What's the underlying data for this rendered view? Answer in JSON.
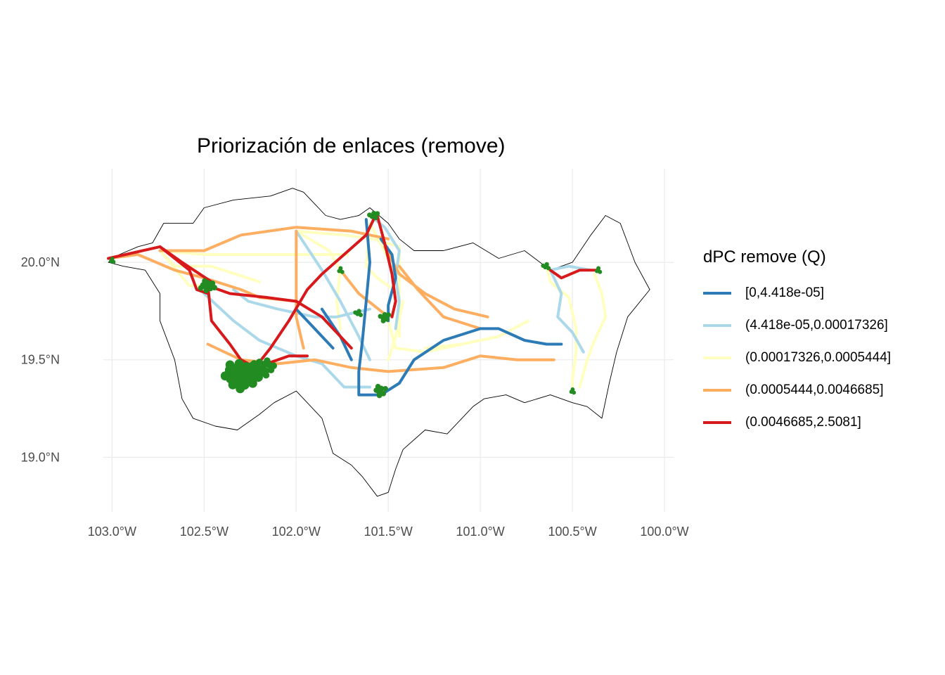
{
  "title": "Priorización de enlaces (remove)",
  "axes": {
    "x_ticks": [
      "103.0°W",
      "102.5°W",
      "102.0°W",
      "101.5°W",
      "101.0°W",
      "100.5°W",
      "100.0°W"
    ],
    "y_ticks": [
      "20.0°N",
      "19.5°N",
      "19.0°N"
    ],
    "x_tick_values": [
      -103.0,
      -102.5,
      -102.0,
      -101.5,
      -101.0,
      -100.5,
      -100.0
    ],
    "y_tick_values": [
      20.0,
      19.5,
      19.0
    ],
    "xlim": [
      -103.2,
      -99.92
    ],
    "ylim": [
      18.72,
      20.48
    ],
    "grid": true
  },
  "legend": {
    "title": "dPC remove (Q)",
    "placement": "right",
    "items": [
      {
        "label": "[0,4.418e-05]",
        "color": "#2c7bb6"
      },
      {
        "label": "(4.418e-05,0.00017326]",
        "color": "#abd9e9"
      },
      {
        "label": "(0.00017326,0.0005444]",
        "color": "#ffffbf"
      },
      {
        "label": "(0.0005444,0.0046685]",
        "color": "#fdae61"
      },
      {
        "label": "(0.0046685,2.5081]",
        "color": "#d7191c"
      }
    ]
  },
  "map_data": {
    "habitat_patch_color": "#228b22",
    "boundary_color": "#000000",
    "boundary": [
      [
        -103.02,
        20.0
      ],
      [
        -102.96,
        20.04
      ],
      [
        -102.86,
        20.08
      ],
      [
        -102.78,
        20.1
      ],
      [
        -102.72,
        20.2
      ],
      [
        -102.56,
        20.2
      ],
      [
        -102.5,
        20.28
      ],
      [
        -102.34,
        20.32
      ],
      [
        -102.14,
        20.34
      ],
      [
        -102.02,
        20.38
      ],
      [
        -101.96,
        20.36
      ],
      [
        -101.9,
        20.3
      ],
      [
        -101.84,
        20.24
      ],
      [
        -101.76,
        20.22
      ],
      [
        -101.66,
        20.24
      ],
      [
        -101.6,
        20.28
      ],
      [
        -101.5,
        20.2
      ],
      [
        -101.44,
        20.12
      ],
      [
        -101.36,
        20.06
      ],
      [
        -101.2,
        20.06
      ],
      [
        -101.04,
        20.1
      ],
      [
        -100.9,
        20.02
      ],
      [
        -100.76,
        20.06
      ],
      [
        -100.62,
        19.96
      ],
      [
        -100.5,
        20.0
      ],
      [
        -100.4,
        20.14
      ],
      [
        -100.32,
        20.24
      ],
      [
        -100.24,
        20.2
      ],
      [
        -100.16,
        20.0
      ],
      [
        -100.08,
        19.86
      ],
      [
        -100.2,
        19.72
      ],
      [
        -100.26,
        19.54
      ],
      [
        -100.3,
        19.38
      ],
      [
        -100.34,
        19.2
      ],
      [
        -100.42,
        19.26
      ],
      [
        -100.5,
        19.28
      ],
      [
        -100.62,
        19.32
      ],
      [
        -100.76,
        19.28
      ],
      [
        -100.86,
        19.32
      ],
      [
        -100.98,
        19.3
      ],
      [
        -101.04,
        19.26
      ],
      [
        -101.18,
        19.12
      ],
      [
        -101.3,
        19.14
      ],
      [
        -101.42,
        19.04
      ],
      [
        -101.46,
        18.94
      ],
      [
        -101.5,
        18.82
      ],
      [
        -101.56,
        18.8
      ],
      [
        -101.64,
        18.9
      ],
      [
        -101.7,
        18.96
      ],
      [
        -101.8,
        19.02
      ],
      [
        -101.86,
        19.2
      ],
      [
        -102.0,
        19.34
      ],
      [
        -102.12,
        19.28
      ],
      [
        -102.2,
        19.22
      ],
      [
        -102.32,
        19.14
      ],
      [
        -102.44,
        19.16
      ],
      [
        -102.56,
        19.2
      ],
      [
        -102.62,
        19.3
      ],
      [
        -102.66,
        19.5
      ],
      [
        -102.74,
        19.7
      ],
      [
        -102.74,
        19.84
      ],
      [
        -102.82,
        19.96
      ],
      [
        -102.94,
        19.98
      ],
      [
        -103.02,
        20.0
      ]
    ],
    "links": [
      {
        "class": 2,
        "coords": [
          [
            -102.74,
            20.06
          ],
          [
            -102.5,
            20.04
          ],
          [
            -102.0,
            20.04
          ],
          [
            -101.72,
            20.04
          ]
        ]
      },
      {
        "class": 2,
        "coords": [
          [
            -102.74,
            20.06
          ],
          [
            -102.66,
            19.98
          ],
          [
            -102.46,
            19.98
          ],
          [
            -102.2,
            19.9
          ]
        ]
      },
      {
        "class": 2,
        "coords": [
          [
            -102.74,
            20.06
          ],
          [
            -102.58,
            19.88
          ],
          [
            -102.48,
            19.88
          ]
        ]
      },
      {
        "class": 2,
        "coords": [
          [
            -102.0,
            20.16
          ],
          [
            -101.74,
            20.14
          ],
          [
            -101.58,
            20.12
          ],
          [
            -101.44,
            20.08
          ],
          [
            -101.44,
            19.84
          ]
        ]
      },
      {
        "class": 2,
        "coords": [
          [
            -102.0,
            20.16
          ],
          [
            -101.82,
            20.06
          ],
          [
            -101.76,
            19.96
          ],
          [
            -101.78,
            19.8
          ],
          [
            -101.76,
            19.66
          ]
        ]
      },
      {
        "class": 2,
        "coords": [
          [
            -101.6,
            20.2
          ],
          [
            -101.62,
            19.98
          ],
          [
            -101.56,
            19.92
          ],
          [
            -101.44,
            19.84
          ]
        ]
      },
      {
        "class": 2,
        "coords": [
          [
            -101.6,
            20.2
          ],
          [
            -101.5,
            20.02
          ],
          [
            -101.44,
            19.84
          ],
          [
            -101.44,
            19.62
          ]
        ]
      },
      {
        "class": 2,
        "coords": [
          [
            -101.5,
            19.7
          ],
          [
            -101.46,
            19.56
          ],
          [
            -101.3,
            19.54
          ],
          [
            -101.1,
            19.58
          ]
        ]
      },
      {
        "class": 2,
        "coords": [
          [
            -101.5,
            19.5
          ],
          [
            -101.46,
            19.62
          ],
          [
            -101.42,
            19.8
          ]
        ]
      },
      {
        "class": 2,
        "coords": [
          [
            -100.64,
            19.98
          ],
          [
            -100.62,
            19.9
          ],
          [
            -100.52,
            19.82
          ],
          [
            -100.48,
            19.66
          ],
          [
            -100.48,
            19.54
          ],
          [
            -100.5,
            19.4
          ],
          [
            -100.5,
            19.36
          ]
        ]
      },
      {
        "class": 2,
        "coords": [
          [
            -100.38,
            19.94
          ],
          [
            -100.34,
            19.84
          ],
          [
            -100.32,
            19.72
          ],
          [
            -100.38,
            19.6
          ],
          [
            -100.42,
            19.5
          ],
          [
            -100.46,
            19.36
          ]
        ]
      },
      {
        "class": 2,
        "coords": [
          [
            -100.74,
            19.7
          ],
          [
            -100.9,
            19.62
          ],
          [
            -101.1,
            19.58
          ],
          [
            -101.3,
            19.56
          ]
        ]
      },
      {
        "class": 3,
        "coords": [
          [
            -103.02,
            20.02
          ],
          [
            -102.86,
            20.04
          ],
          [
            -102.66,
            19.96
          ],
          [
            -102.5,
            19.92
          ],
          [
            -102.3,
            19.86
          ],
          [
            -102.2,
            19.82
          ],
          [
            -102.0,
            19.8
          ]
        ]
      },
      {
        "class": 3,
        "coords": [
          [
            -102.74,
            20.06
          ],
          [
            -102.5,
            20.06
          ],
          [
            -102.3,
            20.14
          ],
          [
            -102.0,
            20.18
          ],
          [
            -101.7,
            20.16
          ],
          [
            -101.5,
            20.12
          ]
        ]
      },
      {
        "class": 3,
        "coords": [
          [
            -101.52,
            20.08
          ],
          [
            -101.44,
            19.94
          ],
          [
            -101.3,
            19.84
          ],
          [
            -101.14,
            19.76
          ],
          [
            -100.96,
            19.72
          ]
        ]
      },
      {
        "class": 3,
        "coords": [
          [
            -102.48,
            19.58
          ],
          [
            -102.3,
            19.5
          ],
          [
            -102.1,
            19.48
          ],
          [
            -101.9,
            19.5
          ],
          [
            -101.7,
            19.46
          ],
          [
            -101.5,
            19.44
          ],
          [
            -101.2,
            19.46
          ],
          [
            -101.0,
            19.52
          ],
          [
            -100.8,
            19.5
          ],
          [
            -100.6,
            19.5
          ]
        ]
      },
      {
        "class": 3,
        "coords": [
          [
            -102.0,
            20.16
          ],
          [
            -102.0,
            19.72
          ],
          [
            -101.96,
            19.56
          ]
        ]
      },
      {
        "class": 3,
        "coords": [
          [
            -101.76,
            19.96
          ],
          [
            -101.66,
            19.84
          ],
          [
            -101.5,
            19.72
          ]
        ]
      },
      {
        "class": 3,
        "coords": [
          [
            -101.44,
            19.98
          ],
          [
            -101.34,
            19.86
          ],
          [
            -101.2,
            19.72
          ],
          [
            -101.0,
            19.66
          ]
        ]
      },
      {
        "class": 0,
        "coords": [
          [
            -101.62,
            20.22
          ],
          [
            -101.6,
            20.0
          ],
          [
            -101.62,
            19.8
          ],
          [
            -101.64,
            19.6
          ],
          [
            -101.66,
            19.44
          ],
          [
            -101.66,
            19.32
          ],
          [
            -101.54,
            19.32
          ],
          [
            -101.44,
            19.38
          ],
          [
            -101.36,
            19.5
          ],
          [
            -101.2,
            19.6
          ],
          [
            -101.0,
            19.66
          ],
          [
            -100.9,
            19.66
          ],
          [
            -100.76,
            19.6
          ],
          [
            -100.64,
            19.58
          ],
          [
            -100.56,
            19.58
          ]
        ]
      },
      {
        "class": 0,
        "coords": [
          [
            -102.0,
            19.76
          ],
          [
            -101.9,
            19.66
          ],
          [
            -101.8,
            19.56
          ]
        ]
      },
      {
        "class": 0,
        "coords": [
          [
            -101.54,
            20.12
          ],
          [
            -101.48,
            20.04
          ],
          [
            -101.46,
            19.92
          ],
          [
            -101.5,
            19.78
          ],
          [
            -101.5,
            19.7
          ]
        ]
      },
      {
        "class": 0,
        "coords": [
          [
            -101.86,
            19.76
          ],
          [
            -101.76,
            19.62
          ],
          [
            -101.7,
            19.5
          ]
        ]
      },
      {
        "class": 1,
        "coords": [
          [
            -102.34,
            19.86
          ],
          [
            -102.26,
            19.8
          ],
          [
            -102.1,
            19.76
          ],
          [
            -101.9,
            19.72
          ],
          [
            -101.78,
            19.72
          ],
          [
            -101.6,
            19.76
          ]
        ]
      },
      {
        "class": 1,
        "coords": [
          [
            -102.5,
            19.84
          ],
          [
            -102.34,
            19.7
          ],
          [
            -102.2,
            19.6
          ],
          [
            -102.0,
            19.52
          ],
          [
            -101.86,
            19.48
          ],
          [
            -101.74,
            19.36
          ],
          [
            -101.6,
            19.36
          ]
        ]
      },
      {
        "class": 1,
        "coords": [
          [
            -102.0,
            20.16
          ],
          [
            -101.86,
            19.96
          ],
          [
            -101.76,
            19.8
          ],
          [
            -101.66,
            19.62
          ],
          [
            -101.6,
            19.5
          ]
        ]
      },
      {
        "class": 1,
        "coords": [
          [
            -101.6,
            20.24
          ],
          [
            -101.52,
            20.18
          ],
          [
            -101.44,
            20.06
          ],
          [
            -101.46,
            19.92
          ],
          [
            -101.44,
            19.8
          ],
          [
            -101.46,
            19.66
          ]
        ]
      },
      {
        "class": 1,
        "coords": [
          [
            -100.62,
            19.96
          ],
          [
            -100.56,
            19.84
          ],
          [
            -100.58,
            19.72
          ],
          [
            -100.5,
            19.64
          ],
          [
            -100.44,
            19.54
          ]
        ]
      },
      {
        "class": 1,
        "coords": [
          [
            -100.62,
            19.96
          ],
          [
            -100.52,
            19.98
          ],
          [
            -100.4,
            19.96
          ]
        ]
      },
      {
        "class": 4,
        "coords": [
          [
            -103.02,
            20.02
          ],
          [
            -102.74,
            20.08
          ],
          [
            -102.62,
            20.0
          ],
          [
            -102.46,
            19.9
          ]
        ]
      },
      {
        "class": 4,
        "coords": [
          [
            -102.74,
            20.08
          ],
          [
            -102.58,
            19.96
          ],
          [
            -102.54,
            19.86
          ],
          [
            -102.48,
            19.84
          ]
        ]
      },
      {
        "class": 4,
        "coords": [
          [
            -102.48,
            19.88
          ],
          [
            -102.46,
            19.7
          ],
          [
            -102.36,
            19.58
          ],
          [
            -102.3,
            19.5
          ],
          [
            -102.22,
            19.46
          ]
        ]
      },
      {
        "class": 4,
        "coords": [
          [
            -102.48,
            19.88
          ],
          [
            -102.36,
            19.84
          ],
          [
            -102.16,
            19.82
          ],
          [
            -102.0,
            19.8
          ],
          [
            -101.86,
            19.72
          ],
          [
            -101.7,
            19.56
          ]
        ]
      },
      {
        "class": 4,
        "coords": [
          [
            -102.24,
            19.44
          ],
          [
            -102.14,
            19.56
          ],
          [
            -102.04,
            19.7
          ],
          [
            -101.94,
            19.86
          ],
          [
            -101.86,
            19.94
          ],
          [
            -101.74,
            20.04
          ],
          [
            -101.62,
            20.14
          ],
          [
            -101.58,
            20.22
          ]
        ]
      },
      {
        "class": 4,
        "coords": [
          [
            -101.56,
            20.24
          ],
          [
            -101.52,
            20.1
          ],
          [
            -101.48,
            19.94
          ],
          [
            -101.46,
            19.8
          ],
          [
            -101.48,
            19.72
          ]
        ]
      },
      {
        "class": 4,
        "coords": [
          [
            -100.62,
            19.96
          ],
          [
            -100.56,
            19.92
          ],
          [
            -100.46,
            19.96
          ],
          [
            -100.36,
            19.96
          ]
        ]
      },
      {
        "class": 4,
        "coords": [
          [
            -102.36,
            19.44
          ],
          [
            -102.24,
            19.42
          ],
          [
            -102.16,
            19.48
          ],
          [
            -102.04,
            19.52
          ],
          [
            -101.94,
            19.52
          ]
        ]
      }
    ],
    "patches": [
      [
        -103.0,
        20.01,
        0.5
      ],
      [
        -102.48,
        19.88,
        1.4
      ],
      [
        -102.3,
        19.42,
        3.2
      ],
      [
        -102.18,
        19.46,
        2.0
      ],
      [
        -101.58,
        20.24,
        0.9
      ],
      [
        -101.76,
        19.96,
        0.6
      ],
      [
        -101.66,
        19.74,
        0.7
      ],
      [
        -101.52,
        19.72,
        1.0
      ],
      [
        -101.54,
        19.34,
        1.2
      ],
      [
        -100.64,
        19.98,
        0.7
      ],
      [
        -100.36,
        19.96,
        0.6
      ],
      [
        -100.5,
        19.34,
        0.5
      ]
    ]
  }
}
